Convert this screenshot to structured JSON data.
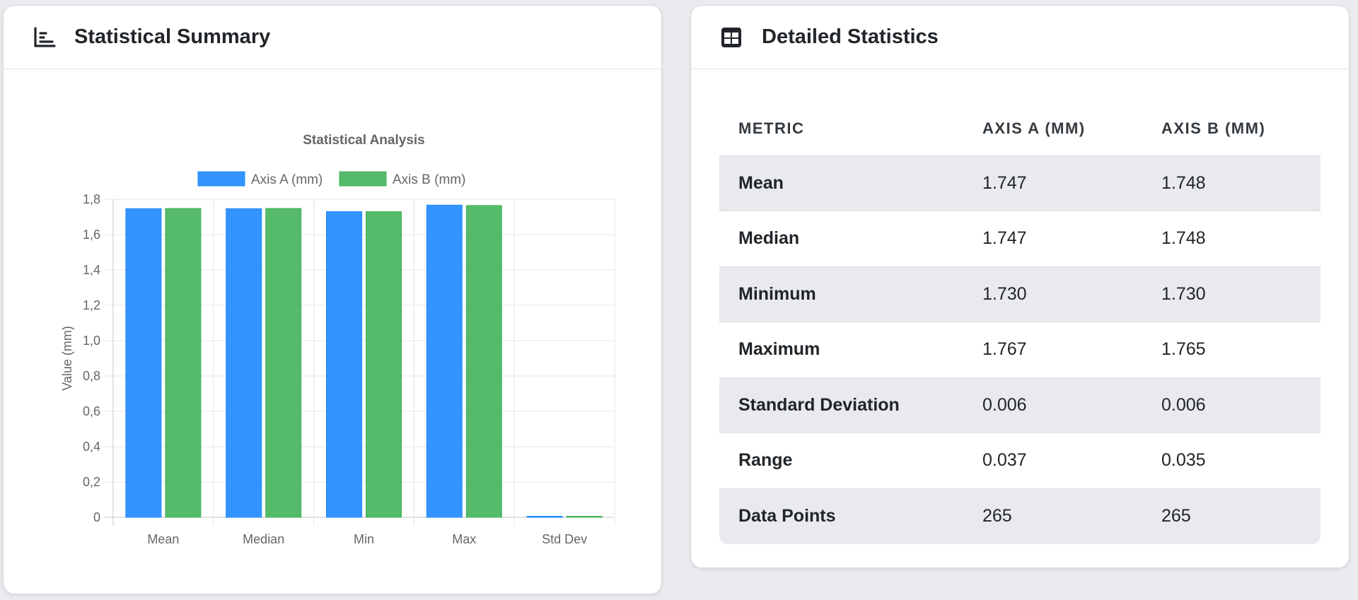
{
  "summary_card": {
    "title": "Statistical Summary",
    "icon": "chart-bar-icon"
  },
  "details_card": {
    "title": "Detailed Statistics",
    "icon": "table-icon"
  },
  "chart_data": {
    "type": "bar",
    "title": "Statistical Analysis",
    "xlabel": "",
    "ylabel": "Value (mm)",
    "categories": [
      "Mean",
      "Median",
      "Min",
      "Max",
      "Std Dev"
    ],
    "series": [
      {
        "name": "Axis A (mm)",
        "color": "#1e88fe",
        "values": [
          1.747,
          1.747,
          1.73,
          1.767,
          0.006
        ]
      },
      {
        "name": "Axis B (mm)",
        "color": "#43b35a",
        "values": [
          1.748,
          1.748,
          1.73,
          1.765,
          0.006
        ]
      }
    ],
    "ylim": [
      0,
      1.8
    ],
    "yticks": [
      "0",
      "0,2",
      "0,4",
      "0,6",
      "0,8",
      "1,0",
      "1,2",
      "1,4",
      "1,6",
      "1,8"
    ],
    "grid": true,
    "legend_position": "top"
  },
  "table": {
    "headers": [
      "METRIC",
      "AXIS A (MM)",
      "AXIS B (MM)"
    ],
    "rows": [
      [
        "Mean",
        "1.747",
        "1.748"
      ],
      [
        "Median",
        "1.747",
        "1.748"
      ],
      [
        "Minimum",
        "1.730",
        "1.730"
      ],
      [
        "Maximum",
        "1.767",
        "1.765"
      ],
      [
        "Standard Deviation",
        "0.006",
        "0.006"
      ],
      [
        "Range",
        "0.037",
        "0.035"
      ],
      [
        "Data Points",
        "265",
        "265"
      ]
    ]
  }
}
